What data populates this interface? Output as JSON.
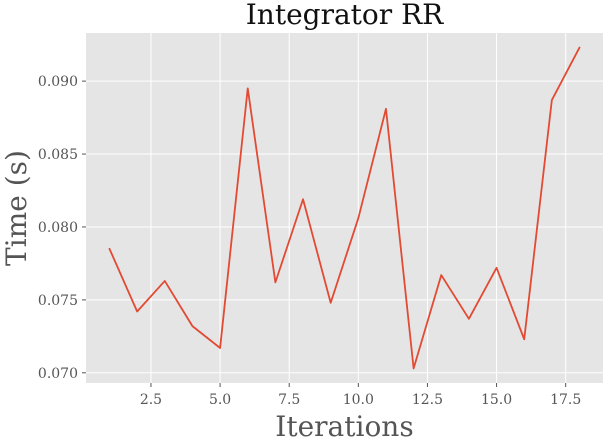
{
  "chart_data": {
    "type": "line",
    "title": "Integrator RR",
    "xlabel": "Iterations",
    "ylabel": "Time (s)",
    "xlim": [
      0.15,
      18.85
    ],
    "ylim": [
      0.0693,
      0.0933
    ],
    "xticks": [
      2.5,
      5.0,
      7.5,
      10.0,
      12.5,
      15.0,
      17.5
    ],
    "xtick_labels": [
      "2.5",
      "5.0",
      "7.5",
      "10.0",
      "12.5",
      "15.0",
      "17.5"
    ],
    "yticks": [
      0.07,
      0.075,
      0.08,
      0.085,
      0.09
    ],
    "ytick_labels": [
      "0.070",
      "0.075",
      "0.080",
      "0.085",
      "0.090"
    ],
    "grid": true,
    "legend": "none",
    "x": [
      1,
      2,
      3,
      4,
      5,
      6,
      7,
      8,
      9,
      10,
      11,
      12,
      13,
      14,
      15,
      16,
      17,
      18
    ],
    "series": [
      {
        "values": [
          0.0785,
          0.0742,
          0.0763,
          0.0732,
          0.0717,
          0.0895,
          0.0762,
          0.0819,
          0.0748,
          0.0806,
          0.0881,
          0.0703,
          0.0767,
          0.0737,
          0.0772,
          0.0723,
          0.0887,
          0.0923
        ],
        "color": "#e24a33"
      }
    ],
    "colors": {
      "plot_background": "#e5e5e5",
      "grid": "#ffffff",
      "tick_label": "#555555",
      "title": "#111111"
    }
  }
}
